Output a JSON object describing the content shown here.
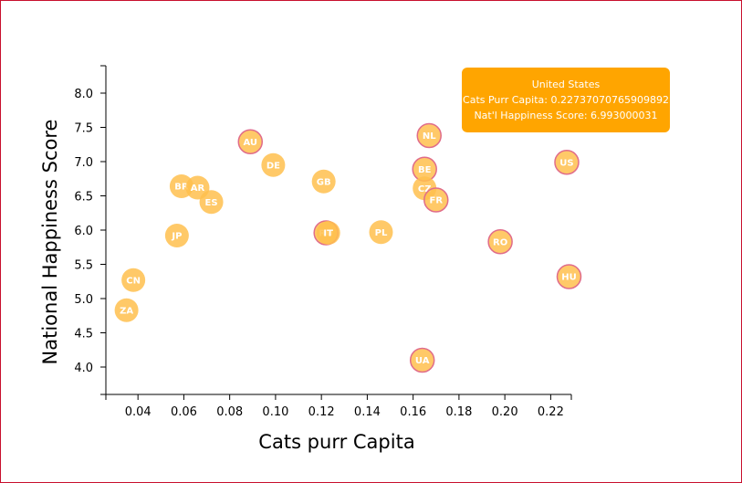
{
  "colors": {
    "point_fill": "#ffc04d",
    "point_border": "#e06c8a",
    "tooltip_bg": "#ffa500",
    "frame_border": "#c8102e"
  },
  "tooltip": {
    "country": "United States",
    "cats_line": "Cats Purr Capita: 0.22737070765909892",
    "happiness_line": "Nat'l Happiness Score: 6.993000031"
  },
  "chart_data": {
    "type": "scatter",
    "xlabel": "Cats purr Capita",
    "ylabel": "National Happiness Score",
    "xlim": [
      0.026,
      0.229
    ],
    "ylim": [
      3.6,
      8.4
    ],
    "x_ticks": [
      "0.04",
      "0.06",
      "0.08",
      "0.10",
      "0.12",
      "0.14",
      "0.16",
      "0.18",
      "0.20",
      "0.22"
    ],
    "y_ticks": [
      "4.0",
      "4.5",
      "5.0",
      "5.5",
      "6.0",
      "6.5",
      "7.0",
      "7.5",
      "8.0"
    ],
    "grid": false,
    "points": [
      {
        "label": "AU",
        "x": 0.089,
        "y": 7.29,
        "highlight": true
      },
      {
        "label": "DE",
        "x": 0.099,
        "y": 6.95,
        "highlight": false
      },
      {
        "label": "GB",
        "x": 0.121,
        "y": 6.71,
        "highlight": false
      },
      {
        "label": "NL",
        "x": 0.167,
        "y": 7.38,
        "highlight": true
      },
      {
        "label": "BE",
        "x": 0.165,
        "y": 6.89,
        "highlight": true
      },
      {
        "label": "CZ",
        "x": 0.165,
        "y": 6.61,
        "highlight": false
      },
      {
        "label": "FR",
        "x": 0.17,
        "y": 6.44,
        "highlight": true
      },
      {
        "label": "US",
        "x": 0.227,
        "y": 6.99,
        "highlight": true
      },
      {
        "label": "BR",
        "x": 0.059,
        "y": 6.64,
        "highlight": false
      },
      {
        "label": "AR",
        "x": 0.066,
        "y": 6.62,
        "highlight": false
      },
      {
        "label": "ES",
        "x": 0.072,
        "y": 6.41,
        "highlight": false
      },
      {
        "label": "JP",
        "x": 0.057,
        "y": 5.92,
        "highlight": false
      },
      {
        "label": "RU",
        "x": 0.122,
        "y": 5.96,
        "highlight": true
      },
      {
        "label": "IT",
        "x": 0.123,
        "y": 5.96,
        "highlight": false
      },
      {
        "label": "PL",
        "x": 0.146,
        "y": 5.97,
        "highlight": false
      },
      {
        "label": "RO",
        "x": 0.198,
        "y": 5.83,
        "highlight": true
      },
      {
        "label": "CN",
        "x": 0.038,
        "y": 5.27,
        "highlight": false
      },
      {
        "label": "ZA",
        "x": 0.035,
        "y": 4.83,
        "highlight": false
      },
      {
        "label": "HU",
        "x": 0.228,
        "y": 5.32,
        "highlight": true
      },
      {
        "label": "UA",
        "x": 0.164,
        "y": 4.1,
        "highlight": true
      }
    ]
  }
}
